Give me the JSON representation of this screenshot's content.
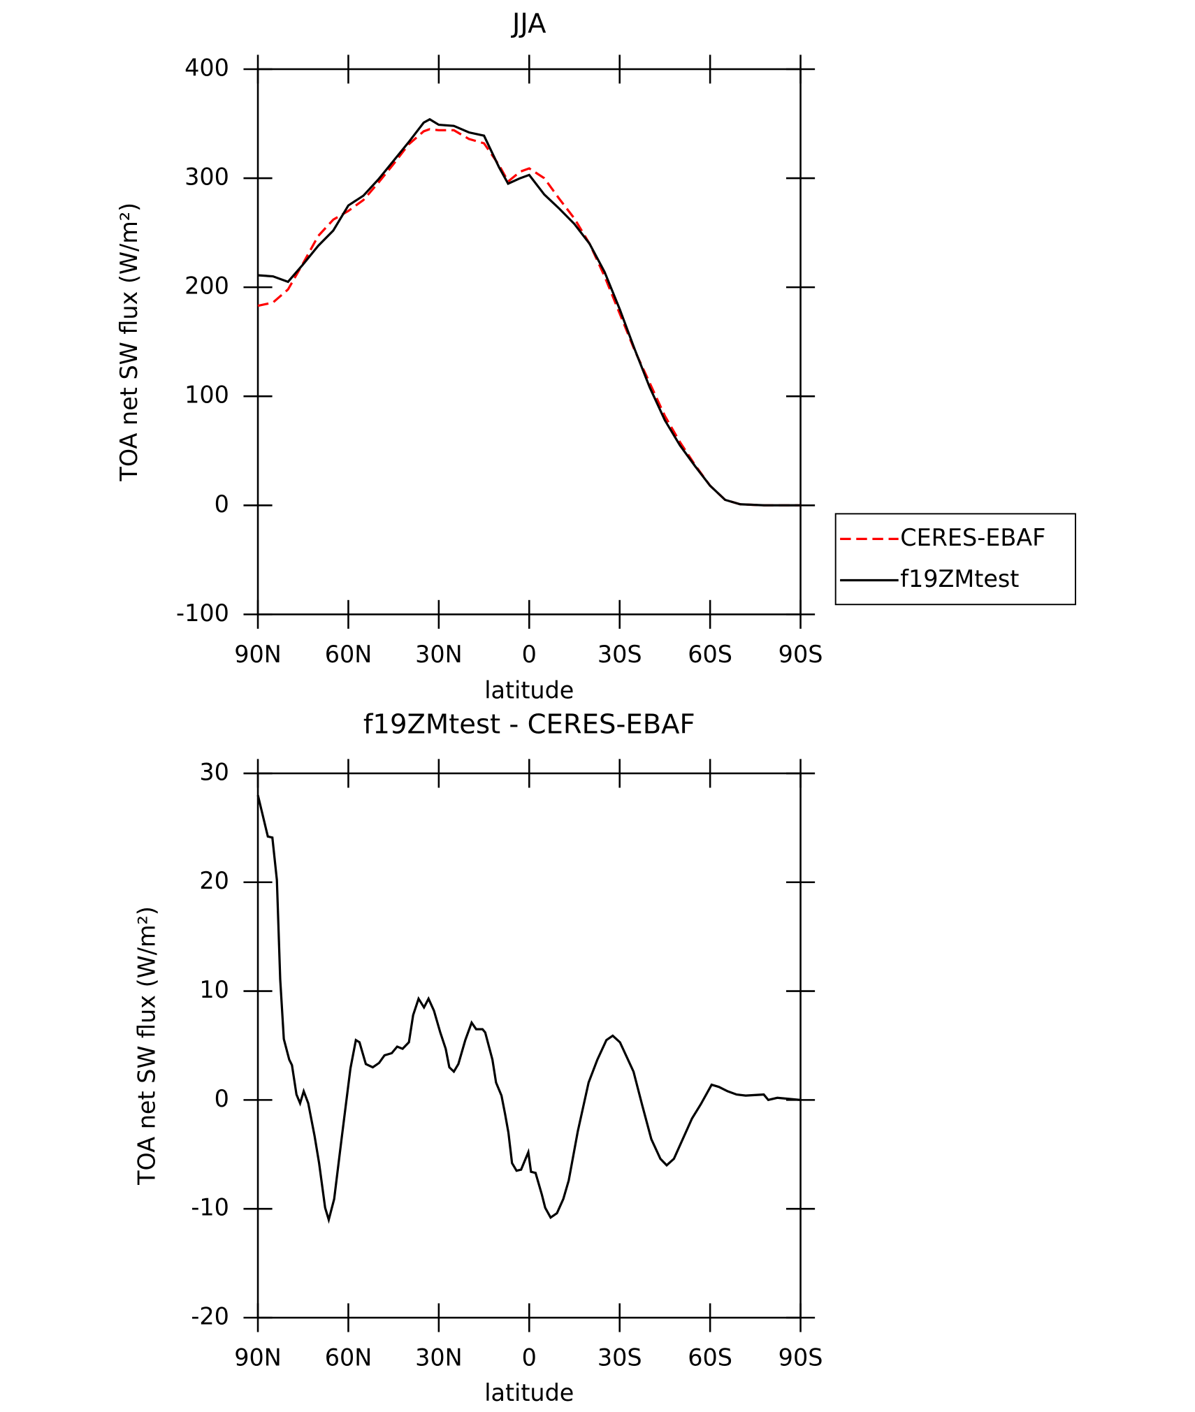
{
  "chart_data": [
    {
      "type": "line",
      "title": "JJA",
      "xlabel": "latitude",
      "ylabel": "TOA net SW flux (W/m²)",
      "xlim": [
        90,
        -90
      ],
      "xticks": [
        {
          "value": 90,
          "label": "90N"
        },
        {
          "value": 60,
          "label": "60N"
        },
        {
          "value": 30,
          "label": "30N"
        },
        0,
        {
          "value": -30,
          "label": "30S"
        },
        {
          "value": -60,
          "label": "60S"
        },
        {
          "value": -90,
          "label": "90S"
        }
      ],
      "ylim": [
        -100,
        400
      ],
      "yticks": [
        -100,
        0,
        100,
        200,
        300,
        400
      ],
      "x": [
        90,
        85,
        80,
        75,
        70,
        65,
        60,
        55,
        50,
        45,
        40,
        35,
        33,
        30,
        25,
        20,
        15,
        10,
        7,
        3,
        0,
        -5,
        -10,
        -15,
        -20,
        -25,
        -30,
        -35,
        -40,
        -45,
        -50,
        -55,
        -60,
        -65,
        -70,
        -78,
        -90
      ],
      "series": [
        {
          "name": "CERES-EBAF",
          "color": "#ff0000",
          "dash": true,
          "values": [
            183,
            186,
            198,
            222,
            247,
            262,
            270,
            280,
            296,
            313,
            331,
            343,
            345,
            344,
            344,
            336,
            332,
            312,
            297,
            306,
            309,
            300,
            281,
            263,
            240,
            210,
            176,
            142,
            112,
            82,
            58,
            37,
            18,
            5,
            1,
            0,
            0
          ]
        },
        {
          "name": "f19ZMtest",
          "color": "#000000",
          "dash": false,
          "values": [
            211,
            210,
            205,
            221,
            238,
            252,
            275,
            284,
            299,
            316,
            333,
            351,
            354,
            349,
            348,
            342,
            339,
            310,
            295,
            300,
            303,
            285,
            272,
            258,
            240,
            214,
            180,
            143,
            108,
            78,
            55,
            36,
            18,
            5,
            1,
            0,
            0
          ]
        }
      ]
    },
    {
      "type": "line",
      "title": "f19ZMtest - CERES-EBAF",
      "xlabel": "latitude",
      "ylabel": "TOA net SW flux (W/m²)",
      "xlim": [
        90,
        -90
      ],
      "xticks": [
        {
          "value": 90,
          "label": "90N"
        },
        {
          "value": 60,
          "label": "60N"
        },
        {
          "value": 30,
          "label": "30N"
        },
        0,
        {
          "value": -30,
          "label": "30S"
        },
        {
          "value": -60,
          "label": "60S"
        },
        {
          "value": -90,
          "label": "90S"
        }
      ],
      "ylim": [
        -20,
        30
      ],
      "yticks": [
        -20,
        -10,
        0,
        10,
        20,
        30
      ],
      "color": "#000000",
      "x": [
        90,
        86.7,
        85.2,
        83.7,
        82.6,
        81.4,
        79.6,
        78.7,
        77.2,
        76,
        74.8,
        73.3,
        71.2,
        69.7,
        67.7,
        66.5,
        64.7,
        62.3,
        60.8,
        59.3,
        57.5,
        56.3,
        54.2,
        51.9,
        49.8,
        48,
        45.6,
        43.8,
        42,
        39.9,
        38.5,
        36.7,
        34.9,
        33.4,
        31.6,
        29.5,
        27.7,
        26.5,
        25,
        23.5,
        21.2,
        19.1,
        17.6,
        15.5,
        14.6,
        12.2,
        11,
        9.2,
        8,
        6.9,
        5.7,
        4.2,
        2.7,
        1.2,
        0.3,
        -0.6,
        -2.1,
        -4.2,
        -5.3,
        -7.1,
        -9.2,
        -11.3,
        -13.1,
        -16.1,
        -19.7,
        -22.6,
        -25.6,
        -27.7,
        -30.1,
        -34.6,
        -37.5,
        -40.5,
        -43.5,
        -45.6,
        -48,
        -54,
        -56.9,
        -60.5,
        -62.9,
        -65.8,
        -68.8,
        -71.8,
        -77.8,
        -79.3,
        -82.3,
        -90
      ],
      "values": [
        28,
        24.2,
        24.1,
        20.2,
        11.1,
        5.6,
        3.7,
        3.2,
        0.5,
        -0.3,
        0.8,
        -0.3,
        -3.3,
        -5.8,
        -9.9,
        -11,
        -9.1,
        -3.7,
        -0.4,
        2.9,
        5.5,
        5.3,
        3.3,
        3,
        3.4,
        4.1,
        4.3,
        4.9,
        4.7,
        5.3,
        7.8,
        9.3,
        8.5,
        9.3,
        8.2,
        6.2,
        4.7,
        3,
        2.6,
        3.3,
        5.5,
        7.1,
        6.5,
        6.5,
        6.2,
        3.7,
        1.6,
        0.4,
        -1.3,
        -3,
        -5.8,
        -6.5,
        -6.4,
        -5.4,
        -4.8,
        -6.6,
        -6.7,
        -8.7,
        -9.9,
        -10.8,
        -10.4,
        -9.1,
        -7.4,
        -2.9,
        1.6,
        3.7,
        5.5,
        5.9,
        5.3,
        2.6,
        -0.5,
        -3.6,
        -5.4,
        -6,
        -5.4,
        -1.7,
        -0.4,
        1.4,
        1.2,
        0.8,
        0.5,
        0.4,
        0.5,
        0,
        0.2,
        0
      ]
    }
  ]
}
